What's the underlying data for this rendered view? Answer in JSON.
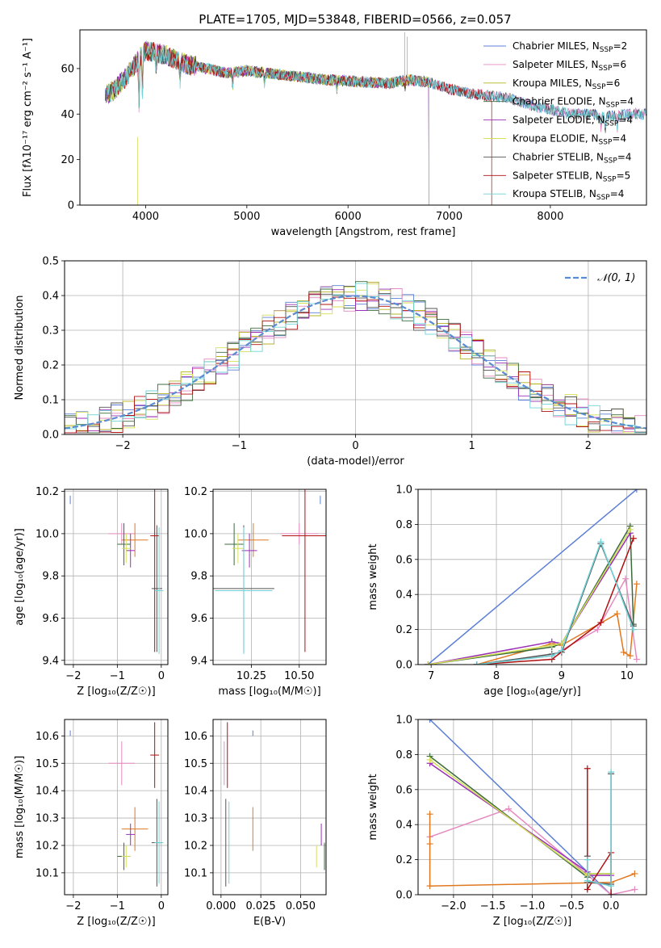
{
  "figure": {
    "title": "PLATE=1705, MJD=53848, FIBERID=0566, z=0.057"
  },
  "chart_data": [
    {
      "id": "spectrum",
      "type": "line",
      "xlabel": "wavelength [Angstrom, rest frame]",
      "ylabel": "Flux [fλ10⁻¹⁷ erg cm⁻² s⁻¹ A⁻¹]",
      "xlim": [
        3350,
        8950
      ],
      "ylim": [
        0,
        77
      ],
      "xticks": [
        4000,
        5000,
        6000,
        7000,
        8000
      ],
      "yticks": [
        0,
        20,
        40,
        60
      ],
      "legend_position": "upper-right",
      "grid": false,
      "series": [
        {
          "name": "Chabrier MILES, N",
          "sub": "SSP",
          "suffix": "=2",
          "color": "#5b7fd6",
          "end": 8950
        },
        {
          "name": "Salpeter MILES, N",
          "sub": "SSP",
          "suffix": "=6",
          "color": "#e58ac0",
          "end": 8950
        },
        {
          "name": "Kroupa MILES, N",
          "sub": "SSP",
          "suffix": "=6",
          "color": "#b5b520",
          "end": 6800
        },
        {
          "name": "Chabrier ELODIE, N",
          "sub": "SSP",
          "suffix": "=4",
          "color": "#3d6b3d",
          "end": 6800
        },
        {
          "name": "Salpeter ELODIE, N",
          "sub": "SSP",
          "suffix": "=4",
          "color": "#9b30b8",
          "end": 6800
        },
        {
          "name": "Kroupa ELODIE, N",
          "sub": "SSP",
          "suffix": "=4",
          "color": "#d4e05a",
          "end": 6800
        },
        {
          "name": "Chabrier STELIB, N",
          "sub": "SSP",
          "suffix": "=4",
          "color": "#555555",
          "end": 8950
        },
        {
          "name": "Salpeter STELIB, N",
          "sub": "SSP",
          "suffix": "=5",
          "color": "#b01010",
          "end": 7420
        },
        {
          "name": "Kroupa STELIB, N",
          "sub": "SSP",
          "suffix": "=4",
          "color": "#6fd3d8",
          "end": 8950
        }
      ],
      "continuum": {
        "x": [
          3600,
          3700,
          3800,
          3900,
          4000,
          4200,
          4400,
          4600,
          4800,
          5000,
          5200,
          5400,
          5600,
          5800,
          6000,
          6200,
          6400,
          6600,
          6800,
          7000,
          7200,
          7400,
          7600,
          7800,
          8000,
          8200,
          8400,
          8600,
          8800,
          8950
        ],
        "y": [
          48,
          51,
          56,
          62,
          68,
          66,
          62,
          60,
          58,
          59,
          58,
          57,
          56,
          55,
          54.5,
          54,
          53.5,
          55,
          54,
          51,
          49,
          48,
          47,
          44,
          42,
          40,
          40,
          39,
          40,
          40
        ]
      }
    },
    {
      "id": "residuals",
      "type": "histogram",
      "xlabel": "(data-model)/error",
      "ylabel": "Normed distribution",
      "xlim": [
        -2.5,
        2.5
      ],
      "ylim": [
        0,
        0.5
      ],
      "xticks": [
        -2,
        -1,
        0,
        1,
        2
      ],
      "yticks": [
        0.0,
        0.1,
        0.2,
        0.3,
        0.4,
        0.5
      ],
      "grid": true,
      "legend_position": "upper-right",
      "reference": {
        "label": "𝒩(0, 1)",
        "mean": 0,
        "sd": 1,
        "color": "#5b8bd0"
      },
      "bin_width": 0.1
    },
    {
      "id": "age_vs_Z",
      "type": "scatter",
      "xlabel": "Z [log₁₀(Z/Z☉)]",
      "ylabel": "age  [log₁₀(age/yr)]",
      "xlim": [
        -2.2,
        0.15
      ],
      "ylim": [
        9.38,
        10.21
      ],
      "xticks": [
        -2,
        -1,
        0
      ],
      "yticks": [
        9.4,
        9.6,
        9.8,
        10.0,
        10.2
      ],
      "grid": true,
      "points": [
        {
          "x": -2.07,
          "y": 10.16,
          "color": "#5b7fd6",
          "ex": 0.0,
          "ey": 0.02
        },
        {
          "x": -0.9,
          "y": 10.0,
          "color": "#e58ac0",
          "ex": 0.3,
          "ey": 0.05
        },
        {
          "x": -0.6,
          "y": 9.97,
          "color": "#e07820",
          "ex": 0.3,
          "ey": 0.08
        },
        {
          "x": -0.85,
          "y": 9.95,
          "color": "#3d6b3d",
          "ex": 0.15,
          "ey": 0.1
        },
        {
          "x": -0.7,
          "y": 9.92,
          "color": "#9b30b8",
          "ex": 0.1,
          "ey": 0.08
        },
        {
          "x": -0.8,
          "y": 9.93,
          "color": "#d4e05a",
          "ex": 0.1,
          "ey": 0.07
        },
        {
          "x": -0.1,
          "y": 9.74,
          "color": "#555555",
          "ex": 0.12,
          "ey": 0.3
        },
        {
          "x": -0.15,
          "y": 9.99,
          "color": "#b01010",
          "ex": 0.1,
          "ey": 0.55
        },
        {
          "x": -0.05,
          "y": 9.73,
          "color": "#6fd3d8",
          "ex": 0.1,
          "ey": 0.3
        }
      ]
    },
    {
      "id": "age_vs_mass",
      "type": "scatter",
      "xlabel": "mass [log₁₀(M/M☉)]",
      "ylabel": "",
      "xlim": [
        10.05,
        10.64
      ],
      "ylim": [
        9.38,
        10.21
      ],
      "xticks": [
        10.25,
        10.5
      ],
      "xtick_labels": [
        "10.25",
        "10.50"
      ],
      "yticks": [
        9.4,
        9.6,
        9.8,
        10.0,
        10.2
      ],
      "grid": true,
      "points": [
        {
          "x": 10.61,
          "y": 10.16,
          "color": "#5b7fd6",
          "ex": 0.0,
          "ey": 0.02
        },
        {
          "x": 10.5,
          "y": 10.0,
          "color": "#e58ac0",
          "ex": 0.1,
          "ey": 0.05
        },
        {
          "x": 10.26,
          "y": 9.97,
          "color": "#e07820",
          "ex": 0.08,
          "ey": 0.08
        },
        {
          "x": 10.16,
          "y": 9.95,
          "color": "#3d6b3d",
          "ex": 0.05,
          "ey": 0.1
        },
        {
          "x": 10.24,
          "y": 9.92,
          "color": "#9b30b8",
          "ex": 0.04,
          "ey": 0.08
        },
        {
          "x": 10.18,
          "y": 9.93,
          "color": "#d4e05a",
          "ex": 0.03,
          "ey": 0.07
        },
        {
          "x": 10.21,
          "y": 9.74,
          "color": "#555555",
          "ex": 0.16,
          "ey": 0.3
        },
        {
          "x": 10.53,
          "y": 9.99,
          "color": "#b01010",
          "ex": 0.12,
          "ey": 0.55
        },
        {
          "x": 10.21,
          "y": 9.73,
          "color": "#6fd3d8",
          "ex": 0.15,
          "ey": 0.3
        }
      ]
    },
    {
      "id": "weight_vs_age",
      "type": "line",
      "xlabel": "age  [log₁₀(age/yr)]",
      "ylabel": "mass weight",
      "xlim": [
        6.8,
        10.3
      ],
      "ylim": [
        0,
        1.0
      ],
      "xticks": [
        7,
        8,
        9,
        10
      ],
      "yticks": [
        0.0,
        0.2,
        0.4,
        0.6,
        0.8,
        1.0
      ],
      "grid": true,
      "series": [
        {
          "color": "#5b7fd6",
          "x": [
            6.95,
            10.15
          ],
          "y": [
            0.0,
            1.0
          ]
        },
        {
          "color": "#e58ac0",
          "x": [
            7.7,
            8.85,
            9.55,
            9.98,
            10.15
          ],
          "y": [
            0.0,
            0.05,
            0.2,
            0.49,
            0.03
          ]
        },
        {
          "color": "#e07820",
          "x": [
            7.7,
            8.85,
            9.0,
            9.85,
            9.95,
            10.05,
            10.15
          ],
          "y": [
            0.0,
            0.12,
            0.11,
            0.29,
            0.07,
            0.05,
            0.46
          ]
        },
        {
          "color": "#3d6b3d",
          "x": [
            6.95,
            8.85,
            9.0,
            10.05,
            10.1
          ],
          "y": [
            0.0,
            0.1,
            0.12,
            0.79,
            0.23
          ]
        },
        {
          "color": "#9b30b8",
          "x": [
            6.95,
            8.85,
            9.0,
            10.05
          ],
          "y": [
            0.0,
            0.13,
            0.12,
            0.75
          ]
        },
        {
          "color": "#d4e05a",
          "x": [
            6.95,
            8.85,
            9.0,
            10.05
          ],
          "y": [
            0.0,
            0.11,
            0.12,
            0.77
          ]
        },
        {
          "color": "#555555",
          "x": [
            7.7,
            8.85,
            9.0,
            9.6,
            10.1
          ],
          "y": [
            0.0,
            0.06,
            0.07,
            0.69,
            0.22
          ]
        },
        {
          "color": "#b01010",
          "x": [
            7.7,
            8.85,
            9.6,
            10.1
          ],
          "y": [
            0.0,
            0.03,
            0.24,
            0.72
          ]
        },
        {
          "color": "#6fd3d8",
          "x": [
            7.7,
            8.85,
            9.0,
            9.6,
            10.1
          ],
          "y": [
            0.0,
            0.05,
            0.08,
            0.7,
            0.2
          ]
        }
      ]
    },
    {
      "id": "mass_vs_Z",
      "type": "scatter",
      "xlabel": "Z [log₁₀(Z/Z☉)]",
      "ylabel": "mass [log₁₀(M/M☉)]",
      "xlim": [
        -2.2,
        0.15
      ],
      "ylim": [
        10.02,
        10.66
      ],
      "xticks": [
        -2,
        -1,
        0
      ],
      "yticks": [
        10.1,
        10.2,
        10.3,
        10.4,
        10.5,
        10.6
      ],
      "grid": true,
      "points": [
        {
          "x": -2.07,
          "y": 10.61,
          "color": "#5b7fd6",
          "ex": 0.0,
          "ey": 0.01
        },
        {
          "x": -0.9,
          "y": 10.5,
          "color": "#e58ac0",
          "ex": 0.3,
          "ey": 0.08
        },
        {
          "x": -0.6,
          "y": 10.26,
          "color": "#e07820",
          "ex": 0.3,
          "ey": 0.08
        },
        {
          "x": -0.85,
          "y": 10.16,
          "color": "#3d6b3d",
          "ex": 0.15,
          "ey": 0.05
        },
        {
          "x": -0.7,
          "y": 10.24,
          "color": "#9b30b8",
          "ex": 0.1,
          "ey": 0.04
        },
        {
          "x": -0.8,
          "y": 10.16,
          "color": "#d4e05a",
          "ex": 0.1,
          "ey": 0.04
        },
        {
          "x": -0.1,
          "y": 10.21,
          "color": "#555555",
          "ex": 0.12,
          "ey": 0.16
        },
        {
          "x": -0.15,
          "y": 10.53,
          "color": "#b01010",
          "ex": 0.1,
          "ey": 0.12
        },
        {
          "x": -0.05,
          "y": 10.21,
          "color": "#6fd3d8",
          "ex": 0.1,
          "ey": 0.15
        }
      ]
    },
    {
      "id": "mass_vs_ebv",
      "type": "scatter",
      "xlabel": "E(B-V)",
      "ylabel": "",
      "xlim": [
        -0.005,
        0.066
      ],
      "ylim": [
        10.02,
        10.66
      ],
      "xticks": [
        0.0,
        0.025,
        0.05
      ],
      "xtick_labels": [
        "0.000",
        "0.025",
        "0.050"
      ],
      "yticks": [
        10.1,
        10.2,
        10.3,
        10.4,
        10.5,
        10.6
      ],
      "grid": true,
      "points": [
        {
          "x": 0.02,
          "y": 10.61,
          "color": "#5b7fd6",
          "ex": 0,
          "ey": 0.01
        },
        {
          "x": 0.002,
          "y": 10.5,
          "color": "#e58ac0",
          "ex": 0,
          "ey": 0.08
        },
        {
          "x": 0.02,
          "y": 10.26,
          "color": "#e07820",
          "ex": 0,
          "ey": 0.08
        },
        {
          "x": 0.065,
          "y": 10.16,
          "color": "#3d6b3d",
          "ex": 0,
          "ey": 0.05
        },
        {
          "x": 0.063,
          "y": 10.24,
          "color": "#9b30b8",
          "ex": 0,
          "ey": 0.04
        },
        {
          "x": 0.06,
          "y": 10.16,
          "color": "#d4e05a",
          "ex": 0,
          "ey": 0.04
        },
        {
          "x": 0.003,
          "y": 10.21,
          "color": "#555555",
          "ex": 0,
          "ey": 0.16
        },
        {
          "x": 0.004,
          "y": 10.53,
          "color": "#b01010",
          "ex": 0,
          "ey": 0.12
        },
        {
          "x": 0.005,
          "y": 10.21,
          "color": "#6fd3d8",
          "ex": 0,
          "ey": 0.15
        }
      ]
    },
    {
      "id": "weight_vs_Z",
      "type": "line",
      "xlabel": "Z [log₁₀(Z/Z☉)]",
      "ylabel": "mass weight",
      "xlim": [
        -2.45,
        0.45
      ],
      "ylim": [
        0,
        1.0
      ],
      "xticks": [
        -2.0,
        -1.5,
        -1.0,
        -0.5,
        0.0
      ],
      "xtick_labels": [
        "−2.0",
        "−1.5",
        "−1.0",
        "−0.5",
        "0.0"
      ],
      "yticks": [
        0.0,
        0.2,
        0.4,
        0.6,
        0.8,
        1.0
      ],
      "grid": true,
      "series": [
        {
          "color": "#5b7fd6",
          "x": [
            -2.3,
            0.0
          ],
          "y": [
            1.0,
            0.0
          ]
        },
        {
          "color": "#e58ac0",
          "x": [
            -2.3,
            -1.3,
            0.0,
            0.3
          ],
          "y": [
            0.33,
            0.49,
            0.0,
            0.03
          ]
        },
        {
          "color": "#e07820",
          "x": [
            -2.3,
            -2.3,
            -2.3,
            0.0,
            0.3
          ],
          "y": [
            0.46,
            0.29,
            0.05,
            0.07,
            0.12
          ]
        },
        {
          "color": "#3d6b3d",
          "x": [
            -2.3,
            -0.3,
            -0.3,
            0.0
          ],
          "y": [
            0.79,
            0.1,
            0.12,
            0.12
          ]
        },
        {
          "color": "#9b30b8",
          "x": [
            -2.3,
            -0.3,
            -0.3,
            0.0
          ],
          "y": [
            0.75,
            0.13,
            0.11,
            0.11
          ]
        },
        {
          "color": "#d4e05a",
          "x": [
            -2.3,
            -0.3,
            -0.3,
            0.0
          ],
          "y": [
            0.77,
            0.11,
            0.12,
            0.12
          ]
        },
        {
          "color": "#555555",
          "x": [
            -0.3,
            -0.3,
            0.0,
            0.0
          ],
          "y": [
            0.22,
            0.07,
            0.06,
            0.69
          ]
        },
        {
          "color": "#b01010",
          "x": [
            -0.3,
            -0.3,
            0.0,
            0.0
          ],
          "y": [
            0.72,
            0.03,
            0.24,
            0.0
          ]
        },
        {
          "color": "#6fd3d8",
          "x": [
            -0.3,
            -0.3,
            0.0,
            0.0
          ],
          "y": [
            0.2,
            0.08,
            0.05,
            0.7
          ]
        }
      ]
    }
  ]
}
